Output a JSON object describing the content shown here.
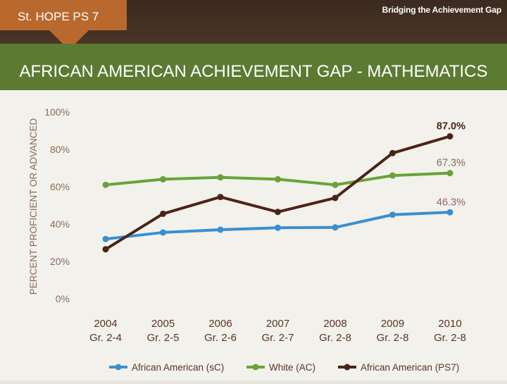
{
  "header": {
    "school": "St. HOPE PS 7",
    "brand_part1": "Bridging the ",
    "brand_part2": "Achievement Gap"
  },
  "title": "AFRICAN AMERICAN ACHIEVEMENT GAP - MATHEMATICS",
  "colors": {
    "topbar": "#3b2a1f",
    "tab": "#b9692e",
    "titlebar": "#5c7a32",
    "blue": "#3b8fd0",
    "green": "#6aa23a",
    "brown": "#4a2418"
  },
  "chart_data": {
    "type": "line",
    "ylabel": "PERCENT PROFICIENT OR ADVANCED",
    "ylim": [
      0,
      100
    ],
    "yticks": [
      "0%",
      "20%",
      "40%",
      "60%",
      "80%",
      "100%"
    ],
    "categories": [
      "2004",
      "2005",
      "2006",
      "2007",
      "2008",
      "2009",
      "2010"
    ],
    "subcategories": [
      "Gr. 2-4",
      "Gr. 2-5",
      "Gr. 2-6",
      "Gr. 2-7",
      "Gr. 2-8",
      "Gr. 2-8",
      "Gr. 2-8"
    ],
    "series": [
      {
        "name": "African American (sC)",
        "color": "#3b8fd0",
        "values": [
          32,
          35.5,
          37,
          38,
          38.2,
          45,
          46.3
        ]
      },
      {
        "name": "White (AC)",
        "color": "#6aa23a",
        "values": [
          61,
          64,
          65,
          64,
          61,
          66,
          67.3
        ]
      },
      {
        "name": "African American (PS7)",
        "color": "#4a2418",
        "values": [
          26.5,
          45.5,
          54.5,
          46.5,
          54,
          78,
          87.0
        ]
      }
    ],
    "data_labels": [
      {
        "series": 2,
        "index": 6,
        "text": "87.0%",
        "bold": true
      },
      {
        "series": 1,
        "index": 6,
        "text": "67.3%",
        "bold": false
      },
      {
        "series": 0,
        "index": 6,
        "text": "46.3%",
        "bold": false
      }
    ],
    "legend": "bottom",
    "grid": false
  }
}
